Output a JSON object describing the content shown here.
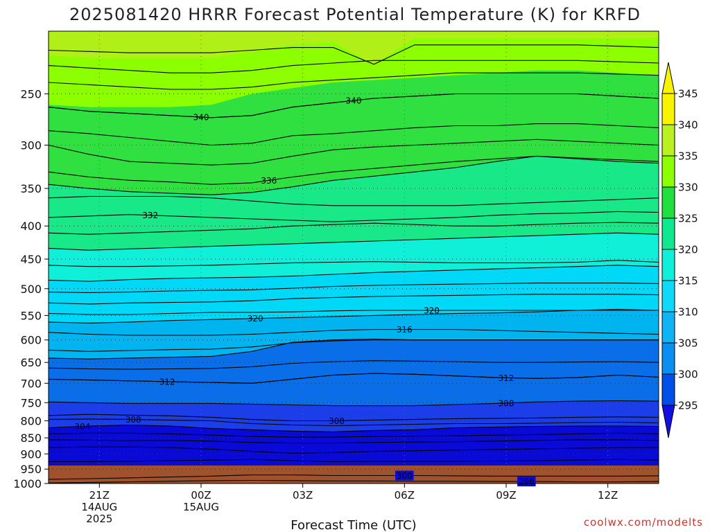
{
  "chart_data": {
    "type": "contour",
    "title": "2025081420 HRRR Forecast Potential Temperature (K) for KRFD",
    "xlabel": "Forecast Time (UTC)",
    "ylabel": "",
    "credit": "coolwx.com/modelts",
    "y_axis": {
      "scale": "pressure-log-inverted",
      "ylim": [
        200,
        1000
      ],
      "tick_labels": [
        "250",
        "300",
        "350",
        "400",
        "450",
        "500",
        "550",
        "600",
        "650",
        "700",
        "750",
        "800",
        "850",
        "900",
        "950",
        "1000"
      ]
    },
    "x_axis": {
      "xlim": [
        -1.5,
        16.5
      ],
      "ticks": [
        {
          "x": 0,
          "label": "21Z",
          "sub": "14AUG",
          "sub2": "2025"
        },
        {
          "x": 3,
          "label": "00Z",
          "sub": "15AUG",
          "sub2": ""
        },
        {
          "x": 6,
          "label": "03Z",
          "sub": "",
          "sub2": ""
        },
        {
          "x": 9,
          "label": "06Z",
          "sub": "",
          "sub2": ""
        },
        {
          "x": 12,
          "label": "09Z",
          "sub": "",
          "sub2": ""
        },
        {
          "x": 15,
          "label": "12Z",
          "sub": "",
          "sub2": ""
        }
      ]
    },
    "colorbar": {
      "levels": [
        "295",
        "300",
        "305",
        "310",
        "315",
        "320",
        "325",
        "330",
        "335",
        "340",
        "345"
      ],
      "colors": [
        "#1010e0",
        "#0050e8",
        "#0a8ff0",
        "#10b4f5",
        "#10d8f8",
        "#10f0d8",
        "#10e890",
        "#20e040",
        "#8cff00",
        "#b8f020",
        "#f8f400"
      ]
    },
    "fill_bands": [
      {
        "range": "below 300",
        "color": "#0a0ad8",
        "p_top": [
          990,
          988,
          985,
          982,
          978,
          975,
          975,
          976,
          976,
          977,
          977,
          978,
          978,
          979,
          979,
          978
        ]
      },
      {
        "range": "300-305",
        "color": "#1c3ee8",
        "p_top": [
          820,
          815,
          812,
          815,
          822,
          826,
          830,
          832,
          828,
          826,
          820,
          818,
          816,
          815,
          815,
          816
        ]
      },
      {
        "range": "305-310",
        "color": "#0a6ee8",
        "p_top": [
          748,
          750,
          752,
          752,
          752,
          754,
          756,
          758,
          758,
          758,
          755,
          752,
          748,
          746,
          745,
          746
        ]
      },
      {
        "range": "310-315",
        "color": "#00b4f0",
        "p_top": [
          640,
          642,
          640,
          638,
          636,
          625,
          605,
          600,
          598,
          600,
          600,
          600,
          600,
          600,
          600,
          600
        ]
      },
      {
        "range": "315-320",
        "color": "#00d8f8",
        "p_top": [
          563,
          565,
          563,
          560,
          558,
          556,
          554,
          552,
          550,
          548,
          546,
          545,
          543,
          540,
          538,
          540
        ]
      },
      {
        "range": "320-325",
        "color": "#10f0d8",
        "p_top": [
          485,
          487,
          484,
          482,
          481,
          480,
          478,
          475,
          472,
          470,
          468,
          466,
          464,
          462,
          460,
          462
        ]
      },
      {
        "range": "325-330",
        "color": "#18e888",
        "p_top": [
          433,
          436,
          434,
          432,
          430,
          428,
          426,
          424,
          422,
          420,
          418,
          416,
          414,
          412,
          410,
          412
        ]
      },
      {
        "range": "330-335",
        "color": "#30e040",
        "p_top": [
          345,
          350,
          354,
          356,
          358,
          355,
          348,
          340,
          335,
          330,
          325,
          318,
          312,
          315,
          318,
          320
        ]
      },
      {
        "range": "335-340",
        "color": "#8cff00",
        "p_top": [
          260,
          262,
          262,
          262,
          260,
          250,
          245,
          240,
          238,
          236,
          234,
          232,
          230,
          230,
          232,
          234
        ]
      },
      {
        "range": "340-345",
        "color": "#b0f018",
        "p_top": [
          218,
          220,
          220,
          220,
          220,
          215,
          210,
          208,
          225,
          205,
          205,
          205,
          205,
          205,
          205,
          205
        ]
      },
      {
        "range": "above 345",
        "color": "#f8f400",
        "p_top": [
          200,
          200,
          200,
          200,
          200,
          200,
          200,
          200,
          200,
          200,
          200,
          200,
          200,
          200,
          200,
          200
        ]
      }
    ],
    "contours": [
      {
        "label": "296",
        "p": [
          998,
          996,
          994,
          992,
          990,
          989,
          990,
          991,
          991,
          992,
          992,
          993,
          993,
          994,
          994,
          993
        ],
        "label_at": 12.6
      },
      {
        "label": "300",
        "p": [
          985,
          983,
          980,
          977,
          974,
          970,
          970,
          972,
          972,
          972,
          973,
          974,
          974,
          974,
          974,
          973
        ],
        "label_at": 9.0
      },
      {
        "label": "",
        "p": [
          925,
          925,
          924,
          922,
          920,
          918,
          922,
          925,
          924,
          924,
          924,
          923,
          922,
          920,
          918,
          920
        ]
      },
      {
        "label": "",
        "p": [
          880,
          878,
          878,
          880,
          885,
          892,
          898,
          896,
          892,
          890,
          888,
          886,
          884,
          882,
          880,
          880
        ]
      },
      {
        "label": "",
        "p": [
          856,
          857,
          858,
          858,
          860,
          864,
          866,
          866,
          864,
          863,
          862,
          860,
          858,
          856,
          856,
          858
        ]
      },
      {
        "label": "",
        "p": [
          838,
          836,
          836,
          838,
          842,
          846,
          848,
          848,
          846,
          845,
          844,
          842,
          840,
          838,
          836,
          838
        ]
      },
      {
        "label": "304",
        "p": [
          820,
          815,
          812,
          815,
          822,
          826,
          830,
          832,
          828,
          826,
          820,
          818,
          816,
          815,
          815,
          816
        ],
        "label_at": -0.5
      },
      {
        "label": "308",
        "p": [
          796,
          795,
          796,
          798,
          800,
          808,
          812,
          814,
          812,
          810,
          808,
          808,
          807,
          805,
          804,
          806
        ],
        "label_at": 1.0
      },
      {
        "label": "308",
        "p": [
          785,
          782,
          784,
          786,
          790,
          796,
          800,
          800,
          798,
          796,
          794,
          793,
          792,
          790,
          789,
          790
        ],
        "label_at": 7.0
      },
      {
        "label": "308",
        "p": [
          748,
          750,
          752,
          752,
          752,
          754,
          756,
          758,
          758,
          758,
          755,
          752,
          748,
          746,
          745,
          746
        ],
        "label_at": 12.0
      },
      {
        "label": "312",
        "p": [
          690,
          692,
          694,
          696,
          698,
          700,
          690,
          680,
          676,
          678,
          682,
          686,
          688,
          686,
          680,
          685
        ],
        "label_at": 2.0
      },
      {
        "label": "312",
        "p": [
          690,
          692,
          694,
          696,
          698,
          700,
          690,
          680,
          676,
          678,
          682,
          686,
          688,
          686,
          680,
          685
        ],
        "label_at": 12.0
      },
      {
        "label": "",
        "p": [
          663,
          665,
          666,
          665,
          664,
          660,
          652,
          648,
          646,
          647,
          648,
          650,
          650,
          649,
          648,
          650
        ]
      },
      {
        "label": "",
        "p": [
          640,
          642,
          640,
          638,
          636,
          625,
          605,
          600,
          598,
          600,
          600,
          600,
          600,
          600,
          600,
          600
        ]
      },
      {
        "label": "",
        "p": [
          622,
          625,
          623,
          621,
          620,
          615,
          606,
          602,
          600,
          600,
          600,
          600,
          600,
          600,
          600,
          600
        ]
      },
      {
        "label": "316",
        "p": [
          584,
          588,
          590,
          590,
          590,
          588,
          584,
          580,
          578,
          578,
          578,
          580,
          582,
          584,
          586,
          588
        ],
        "label_at": 9.0
      },
      {
        "label": "320",
        "p": [
          563,
          565,
          563,
          560,
          558,
          556,
          554,
          552,
          550,
          548,
          546,
          545,
          543,
          540,
          538,
          540
        ],
        "label_at": 4.6
      },
      {
        "label": "320",
        "p": [
          546,
          548,
          548,
          546,
          544,
          544,
          543,
          541,
          540,
          540,
          540,
          540,
          540,
          540,
          540,
          540
        ],
        "label_at": 9.8
      },
      {
        "label": "",
        "p": [
          526,
          528,
          526,
          525,
          524,
          522,
          518,
          516,
          514,
          513,
          512,
          511,
          510,
          510,
          510,
          511
        ]
      },
      {
        "label": "",
        "p": [
          506,
          507,
          506,
          504,
          503,
          502,
          499,
          496,
          494,
          493,
          492,
          491,
          490,
          490,
          490,
          491
        ]
      },
      {
        "label": "",
        "p": [
          485,
          487,
          484,
          482,
          481,
          480,
          478,
          475,
          472,
          470,
          468,
          466,
          464,
          462,
          460,
          462
        ]
      },
      {
        "label": "",
        "p": [
          460,
          462,
          462,
          461,
          460,
          458,
          456,
          455,
          454,
          455,
          456,
          456,
          456,
          455,
          452,
          455
        ]
      },
      {
        "label": "",
        "p": [
          433,
          436,
          434,
          432,
          430,
          428,
          426,
          424,
          422,
          420,
          418,
          416,
          414,
          412,
          410,
          412
        ]
      },
      {
        "label": "",
        "p": [
          410,
          412,
          410,
          408,
          406,
          404,
          400,
          398,
          396,
          398,
          400,
          400,
          398,
          396,
          395,
          396
        ]
      },
      {
        "label": "332",
        "p": [
          388,
          386,
          384,
          386,
          388,
          390,
          392,
          394,
          392,
          390,
          388,
          385,
          383,
          382,
          380,
          381
        ],
        "label_at": 1.5
      },
      {
        "label": "",
        "p": [
          362,
          360,
          360,
          360,
          362,
          366,
          370,
          372,
          372,
          372,
          372,
          370,
          368,
          366,
          364,
          362
        ]
      },
      {
        "label": "",
        "p": [
          345,
          350,
          354,
          356,
          358,
          355,
          348,
          340,
          335,
          330,
          325,
          318,
          312,
          315,
          318,
          320
        ]
      },
      {
        "label": "336",
        "p": [
          330,
          336,
          340,
          342,
          345,
          343,
          336,
          330,
          326,
          322,
          318,
          315,
          312,
          314,
          316,
          318
        ],
        "label_at": 5.0
      },
      {
        "label": "",
        "p": [
          300,
          310,
          318,
          320,
          322,
          320,
          312,
          305,
          302,
          300,
          298,
          296,
          294,
          296,
          298,
          300
        ]
      },
      {
        "label": "",
        "p": [
          285,
          288,
          292,
          296,
          300,
          298,
          290,
          288,
          285,
          282,
          280,
          280,
          278,
          278,
          280,
          282
        ]
      },
      {
        "label": "340",
        "p": [
          262,
          266,
          268,
          270,
          272,
          270,
          262,
          258,
          254,
          252,
          250,
          250,
          250,
          250,
          252,
          254
        ],
        "label_at": 3.0
      },
      {
        "label": "340",
        "p": [
          262,
          266,
          268,
          270,
          272,
          270,
          262,
          258,
          254,
          252,
          250,
          250,
          250,
          250,
          252,
          254
        ],
        "label_at": 7.5
      },
      {
        "label": "",
        "p": [
          240,
          242,
          244,
          246,
          246,
          244,
          240,
          238,
          236,
          234,
          232,
          232,
          232,
          232,
          233,
          234
        ]
      },
      {
        "label": "",
        "p": [
          226,
          228,
          230,
          232,
          232,
          230,
          226,
          224,
          222,
          222,
          222,
          222,
          222,
          222,
          223,
          224
        ]
      },
      {
        "label": "",
        "p": [
          214,
          215,
          216,
          216,
          216,
          214,
          212,
          212,
          225,
          210,
          210,
          210,
          210,
          210,
          211,
          212
        ]
      }
    ]
  }
}
